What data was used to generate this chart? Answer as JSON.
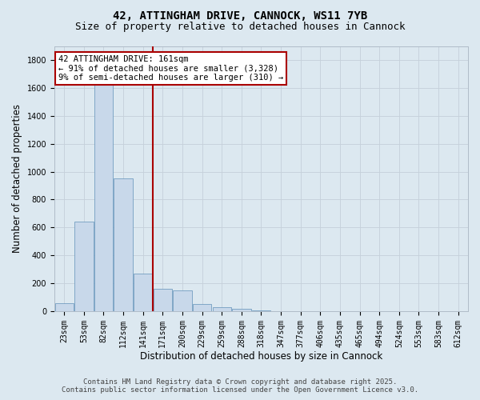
{
  "title_line1": "42, ATTINGHAM DRIVE, CANNOCK, WS11 7YB",
  "title_line2": "Size of property relative to detached houses in Cannock",
  "xlabel": "Distribution of detached houses by size in Cannock",
  "ylabel": "Number of detached properties",
  "categories": [
    "23sqm",
    "53sqm",
    "82sqm",
    "112sqm",
    "141sqm",
    "171sqm",
    "200sqm",
    "229sqm",
    "259sqm",
    "288sqm",
    "318sqm",
    "347sqm",
    "377sqm",
    "406sqm",
    "435sqm",
    "465sqm",
    "494sqm",
    "524sqm",
    "553sqm",
    "583sqm",
    "612sqm"
  ],
  "values": [
    55,
    640,
    1650,
    950,
    270,
    160,
    150,
    50,
    30,
    15,
    5,
    2,
    1,
    0,
    0,
    0,
    0,
    0,
    0,
    0,
    0
  ],
  "bar_color": "#c8d8ea",
  "bar_edge_color": "#6090b8",
  "grid_color": "#c5d0da",
  "background_color": "#dce8f0",
  "annotation_box_color": "#ffffff",
  "annotation_border_color": "#aa0000",
  "vline_color": "#aa0000",
  "vline_x": 4.5,
  "annotation_text_line1": "42 ATTINGHAM DRIVE: 161sqm",
  "annotation_text_line2": "← 91% of detached houses are smaller (3,328)",
  "annotation_text_line3": "9% of semi-detached houses are larger (310) →",
  "ylim": [
    0,
    1900
  ],
  "yticks": [
    0,
    200,
    400,
    600,
    800,
    1000,
    1200,
    1400,
    1600,
    1800
  ],
  "footer_line1": "Contains HM Land Registry data © Crown copyright and database right 2025.",
  "footer_line2": "Contains public sector information licensed under the Open Government Licence v3.0.",
  "title_fontsize": 10,
  "subtitle_fontsize": 9,
  "tick_fontsize": 7,
  "label_fontsize": 8.5,
  "annotation_fontsize": 7.5,
  "footer_fontsize": 6.5
}
